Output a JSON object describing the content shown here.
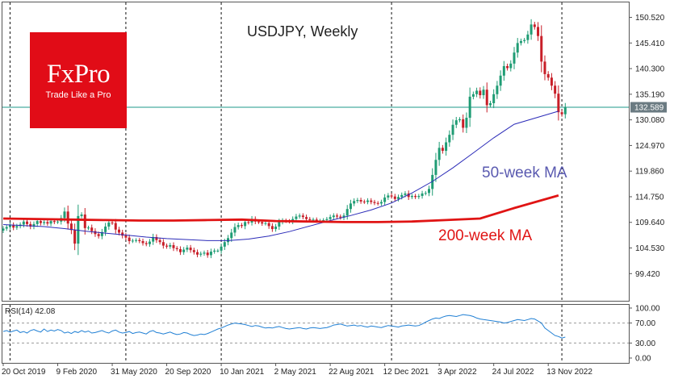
{
  "logo": {
    "name": "FxPro",
    "tagline": "Trade Like a Pro"
  },
  "chart_data": {
    "type": "candlestick",
    "title": "USDJPY, Weekly",
    "current_price": "132.589",
    "colors": {
      "up": "#1f9c74",
      "down": "#c81e28",
      "ma50": "#2b2bb8",
      "ma200": "#e01414",
      "price_line": "#1d9a8a",
      "rsi": "#1f7fd4",
      "badge": "#6b7b82"
    },
    "price_axis": {
      "min": 94.0,
      "max": 153.5,
      "ticks": [
        "150.520",
        "145.410",
        "140.300",
        "135.190",
        "130.080",
        "124.970",
        "119.860",
        "114.750",
        "109.640",
        "104.530",
        "99.420"
      ]
    },
    "date_labels": [
      "20 Oct 2019",
      "9 Feb 2020",
      "31 May 2020",
      "20 Sep 2020",
      "10 Jan 2021",
      "2 May 2021",
      "22 Aug 2021",
      "12 Dec 2021",
      "3 Apr 2022",
      "24 Jul 2022",
      "13 Nov 2022"
    ],
    "date_weeks": [
      0,
      16,
      32,
      48,
      64,
      80,
      96,
      112,
      128,
      144,
      160
    ],
    "vertical_markers": [
      2,
      36,
      64,
      114,
      164
    ],
    "ma_labels": [
      {
        "text": "50-week MA",
        "color": "#5a5ab0"
      },
      {
        "text": "200-week MA",
        "color": "#e01414"
      }
    ],
    "ma200_values": [
      110.4,
      110.3,
      110.2,
      110.1,
      110.0,
      110.0,
      110.1,
      110.2,
      109.9,
      109.8,
      109.7,
      109.7,
      109.8,
      110.1,
      110.4,
      112.5,
      115.0
    ],
    "ma200_weeks": [
      0,
      10,
      20,
      30,
      40,
      50,
      60,
      70,
      80,
      90,
      100,
      110,
      120,
      130,
      140,
      150,
      163
    ],
    "ma50_values": [
      109.2,
      109.0,
      108.8,
      108.4,
      107.9,
      107.5,
      107.1,
      106.7,
      106.4,
      106.2,
      106.0,
      106.0,
      106.3,
      106.9,
      107.8,
      108.9,
      110.0,
      111.0,
      112.1,
      113.5,
      115.5,
      117.8,
      120.5,
      123.5,
      126.5,
      129.2,
      131.8
    ],
    "ma50_weeks": [
      0,
      6,
      12,
      18,
      24,
      30,
      36,
      42,
      48,
      54,
      60,
      66,
      72,
      78,
      84,
      90,
      96,
      102,
      108,
      114,
      120,
      126,
      132,
      138,
      144,
      150,
      163
    ],
    "price_closes": [
      108.4,
      108.7,
      109.1,
      108.6,
      108.9,
      109.2,
      109.8,
      109.3,
      108.8,
      109.3,
      109.9,
      109.5,
      109.7,
      109.4,
      109.9,
      109.7,
      109.8,
      110.5,
      111.8,
      109.4,
      108.1,
      105.4,
      110.9,
      111.2,
      108.5,
      108.6,
      107.9,
      107.3,
      106.9,
      107.7,
      108.8,
      109.6,
      109.5,
      108.2,
      107.6,
      107.0,
      106.6,
      105.9,
      106.0,
      106.1,
      105.9,
      105.5,
      105.3,
      105.8,
      106.7,
      106.1,
      105.7,
      105.0,
      104.8,
      105.1,
      104.5,
      104.3,
      103.7,
      104.2,
      104.6,
      104.1,
      103.7,
      103.2,
      103.4,
      103.6,
      103.1,
      103.8,
      104.0,
      104.0,
      104.8,
      105.7,
      106.5,
      107.6,
      108.7,
      109.1,
      108.9,
      109.7,
      109.6,
      110.3,
      109.8,
      109.7,
      109.4,
      109.5,
      108.9,
      108.3,
      108.8,
      109.7,
      110.0,
      109.9,
      109.8,
      110.3,
      110.8,
      111.0,
      110.7,
      110.3,
      110.1,
      110.2,
      110.0,
      110.0,
      110.1,
      110.3,
      110.7,
      111.0,
      110.8,
      110.6,
      111.0,
      112.3,
      113.4,
      113.9,
      114.1,
      113.8,
      113.7,
      114.0,
      113.7,
      113.5,
      113.4,
      113.7,
      114.6,
      115.0,
      114.8,
      114.3,
      114.7,
      115.1,
      115.4,
      114.7,
      114.9,
      114.7,
      114.9,
      115.4,
      115.5,
      116.3,
      119.1,
      122.1,
      124.5,
      123.9,
      125.6,
      127.1,
      129.1,
      130.0,
      130.2,
      128.5,
      130.5,
      134.7,
      135.2,
      135.9,
      135.0,
      136.1,
      133.0,
      133.4,
      135.2,
      136.9,
      138.9,
      140.8,
      140.4,
      141.3,
      143.5,
      145.4,
      145.8,
      146.0,
      147.1,
      149.1,
      148.6,
      146.8,
      141.7,
      139.2,
      138.5,
      136.9,
      135.3,
      131.6,
      131.2,
      132.6
    ],
    "rsi": {
      "label": "RSI(14) 42.08",
      "min": 0,
      "max": 100,
      "levels": [
        70,
        30
      ],
      "ticks": [
        "100.00",
        "70.00",
        "30.00",
        "0.00"
      ],
      "values": [
        53,
        55,
        52,
        54,
        56,
        51,
        53,
        50,
        55,
        57,
        54,
        52,
        58,
        53,
        56,
        54,
        57,
        55,
        50,
        52,
        49,
        53,
        51,
        55,
        52,
        54,
        50,
        51,
        53,
        55,
        52,
        50,
        54,
        56,
        52,
        50,
        51,
        53,
        49,
        51,
        52,
        50,
        48,
        53,
        55,
        51,
        50,
        48,
        50,
        52,
        49,
        47,
        48,
        51,
        50,
        47,
        45,
        46,
        48,
        47,
        49,
        52,
        55,
        58,
        60,
        63,
        66,
        68,
        70,
        69,
        68,
        67,
        65,
        63,
        65,
        64,
        62,
        60,
        61,
        60,
        62,
        63,
        61,
        59,
        58,
        59,
        60,
        61,
        59,
        58,
        60,
        61,
        60,
        59,
        60,
        61,
        63,
        66,
        67,
        68,
        66,
        64,
        65,
        66,
        64,
        65,
        63,
        62,
        64,
        63,
        62,
        61,
        63,
        65,
        64,
        63,
        62,
        64,
        65,
        66,
        65,
        64,
        65,
        68,
        72,
        75,
        78,
        80,
        79,
        82,
        84,
        85,
        84,
        83,
        85,
        87,
        86,
        85,
        83,
        80,
        78,
        77,
        76,
        75,
        74,
        73,
        72,
        70,
        71,
        73,
        75,
        77,
        76,
        75,
        77,
        79,
        78,
        74,
        70,
        60,
        55,
        50,
        45,
        43,
        40,
        42
      ]
    }
  }
}
